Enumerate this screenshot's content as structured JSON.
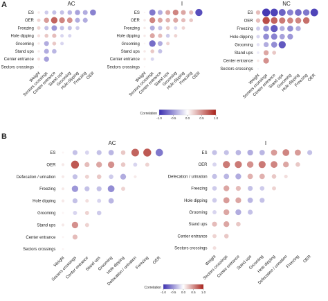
{
  "figure": {
    "panel_a_label": "A",
    "panel_b_label": "B",
    "legend_title": "Correlation",
    "legend_ticks": [
      "-1.0",
      "-0.5",
      "0.0",
      "0.5",
      "1.0"
    ],
    "colors": {
      "negative": "#3b2fb0",
      "zero": "#ffffff",
      "positive": "#a8211a"
    }
  },
  "chart_data": [
    {
      "type": "heatmap",
      "panel": "A",
      "title": "AC",
      "rows": [
        "ES",
        "OER",
        "Freezing",
        "Hole dipping",
        "Grooming",
        "Stand ups",
        "Center entrance",
        "Sectors crossings"
      ],
      "columns": [
        "Weight",
        "Sectors crossings",
        "Center entrance",
        "Stand ups",
        "Grooming",
        "Hole dipping",
        "Freezing",
        "OER"
      ],
      "values": [
        [
          0.1,
          -0.25,
          -0.3,
          -0.3,
          -0.35,
          -0.45,
          -0.4,
          -0.6
        ],
        [
          0.2,
          0.45,
          0.7,
          0.55,
          0.5,
          -0.4,
          -0.4
        ],
        [
          0.2,
          -0.3,
          -0.5,
          -0.3,
          -0.3,
          -0.25
        ],
        [
          0.15,
          0.25,
          0.3,
          -0.2,
          -0.2
        ],
        [
          0.1,
          -0.4,
          0.25,
          -0.2
        ],
        [
          0.1,
          -0.4,
          -0.35
        ],
        [
          0.15,
          -0.45
        ],
        [
          0.05
        ]
      ]
    },
    {
      "type": "heatmap",
      "panel": "A",
      "title": "I",
      "rows": [
        "ES",
        "OER",
        "Freezing",
        "Hole dipping",
        "Grooming",
        "Stand ups",
        "Center entrance",
        "Sectors crossings"
      ],
      "columns": [
        "Weight",
        "Sectors crossings",
        "Center entrance",
        "Stand ups",
        "Grooming",
        "Hole dipping",
        "Freezing",
        "OER"
      ],
      "values": [
        [
          0.05,
          -0.65,
          -0.4,
          0.4,
          0.55,
          0.4,
          0.3,
          -0.85
        ],
        [
          0.1,
          0.55,
          0.4,
          0.35,
          0.4,
          0.3,
          0.25
        ],
        [
          0.1,
          -0.4,
          -0.3,
          0.25,
          -0.2,
          0.2
        ],
        [
          0.1,
          0.4,
          0.3,
          -0.25,
          0.2
        ],
        [
          0.05,
          -0.7,
          -0.4,
          0.2
        ],
        [
          0.1,
          0.25,
          -0.3
        ],
        [
          0.1,
          -0.2
        ],
        [
          0.05
        ]
      ]
    },
    {
      "type": "heatmap",
      "panel": "A",
      "title": "NC",
      "rows": [
        "ES",
        "OER",
        "Freezing",
        "Hole dipping",
        "Grooming",
        "Stand ups",
        "Center entrance",
        "Sectors crossings"
      ],
      "columns": [
        "Weight",
        "Sectors crossings",
        "Center entrance",
        "Stand ups",
        "Grooming",
        "Hole dipping",
        "Freezing",
        "OER"
      ],
      "values": [
        [
          0.3,
          -0.95,
          -0.9,
          -0.75,
          -0.6,
          -0.7,
          -0.65,
          -0.9
        ],
        [
          0.3,
          0.8,
          0.7,
          0.6,
          0.55,
          0.55,
          0.65
        ],
        [
          -0.25,
          -0.55,
          -0.8,
          -0.4,
          -0.55,
          -0.4
        ],
        [
          -0.2,
          -0.55,
          -0.6,
          -0.45,
          -0.5
        ],
        [
          -0.15,
          -0.4,
          -0.55,
          -0.8
        ],
        [
          -0.1,
          0.4,
          0.25
        ],
        [
          0.1,
          0.5
        ],
        [
          -0.05
        ]
      ]
    },
    {
      "type": "heatmap",
      "panel": "B",
      "title": "AC",
      "rows": [
        "ES",
        "OER",
        "Defecation / urination",
        "Freezing",
        "Hole dipping",
        "Grooming",
        "Stand ups",
        "Center entrance",
        "Sectors crossings"
      ],
      "columns": [
        "Weight",
        "Sectors crossings",
        "Center entrance",
        "Stand ups",
        "Grooming",
        "Hole dipping",
        "Defecation / urination",
        "Freezing",
        "OER"
      ],
      "values": [
        [
          0.05,
          -0.3,
          -0.2,
          -0.3,
          -0.35,
          0.25,
          0.7,
          0.75,
          -0.65
        ],
        [
          0.1,
          0.75,
          0.3,
          0.4,
          0.5,
          0.25,
          -0.2,
          0.2
        ],
        [
          0.1,
          -0.3,
          0.2,
          0.25,
          -0.25,
          -0.4,
          0.1
        ],
        [
          0.1,
          -0.5,
          -0.3,
          -0.3,
          -0.55,
          0.2
        ],
        [
          0.1,
          -0.3,
          0.15,
          -0.2,
          -0.35
        ],
        [
          0.05,
          -0.2,
          0.2,
          -0.25
        ],
        [
          0.1,
          0.5,
          0.2
        ],
        [
          0.05,
          0.3
        ],
        [
          0.05
        ]
      ]
    },
    {
      "type": "heatmap",
      "panel": "B",
      "title": "I",
      "rows": [
        "ES",
        "OER",
        "Defecation / urination",
        "Freezing",
        "Hole dipping",
        "Grooming",
        "Stand ups",
        "Center entrance",
        "Sectors crossings"
      ],
      "columns": [
        "Weight",
        "Sectors crossings",
        "Center entrance",
        "Stand ups",
        "Grooming",
        "Hole dipping",
        "Defecation / urination",
        "Freezing",
        "OER"
      ],
      "values": [
        [
          -0.3,
          -0.3,
          -0.35,
          -0.4,
          -0.35,
          0.45,
          0.55,
          0.45,
          -0.3
        ],
        [
          -0.2,
          0.6,
          0.6,
          0.5,
          0.6,
          0.55,
          0.4,
          0.25
        ],
        [
          -0.3,
          -0.35,
          -0.4,
          0.35,
          0.35,
          0.25,
          0.15
        ],
        [
          -0.25,
          0.4,
          0.3,
          -0.3,
          -0.25,
          0.2
        ],
        [
          -0.25,
          0.45,
          0.4,
          -0.35,
          -0.3
        ],
        [
          -0.2,
          0.4,
          -0.4,
          -0.3
        ],
        [
          0.3,
          0.4,
          0.25
        ],
        [
          0.2,
          0.25
        ],
        [
          0.15
        ]
      ]
    }
  ]
}
